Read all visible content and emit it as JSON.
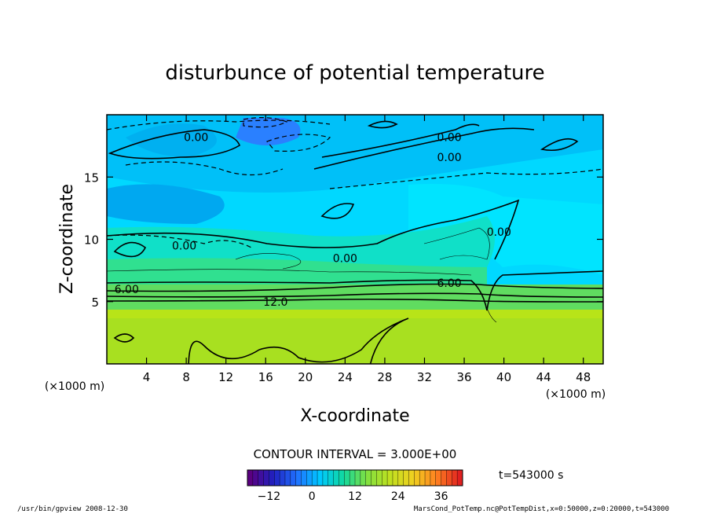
{
  "chart_data": {
    "type": "heatmap",
    "title": "disturbunce of potential temperature",
    "xlabel": "X-coordinate",
    "ylabel": "Z-coordinate",
    "x_unit": "(×1000 m)",
    "y_unit": "(×1000 m)",
    "xlim": [
      0,
      50
    ],
    "ylim": [
      0,
      20
    ],
    "x_ticks": [
      4,
      8,
      12,
      16,
      20,
      24,
      28,
      32,
      36,
      40,
      44,
      48
    ],
    "y_ticks": [
      5,
      10,
      15
    ],
    "contour_interval_text": "CONTOUR INTERVAL = 3.000E+00",
    "contour_labels": [
      {
        "text": "0.00",
        "x": 9,
        "z": 18.2
      },
      {
        "text": "0.00",
        "x": 34.5,
        "z": 18.2
      },
      {
        "text": "0.00",
        "x": 34.5,
        "z": 16.6
      },
      {
        "text": "0.00",
        "x": 7.8,
        "z": 9.5
      },
      {
        "text": "0.00",
        "x": 24,
        "z": 8.5
      },
      {
        "text": "0.00",
        "x": 39.5,
        "z": 10.6
      },
      {
        "text": "6.00",
        "x": 2,
        "z": 6.0
      },
      {
        "text": "6.00",
        "x": 34.5,
        "z": 6.5
      },
      {
        "text": "12.0",
        "x": 17,
        "z": 5.0
      }
    ],
    "colorbar": {
      "range": [
        -18,
        42
      ],
      "ticks": [
        -12,
        0,
        12,
        24,
        36
      ],
      "colors": [
        "#5a0080",
        "#2020c0",
        "#2070ff",
        "#00c8ff",
        "#10d8a0",
        "#80e040",
        "#c0e020",
        "#f0d020",
        "#ff8020",
        "#e02020"
      ]
    },
    "time_label": "t=543000 s",
    "grid": false,
    "legend": "bottom"
  },
  "footer": {
    "left": "/usr/bin/gpview   2008-12-30",
    "right": "MarsCond_PotTemp.nc@PotTempDist,x=0:50000,z=0:20000,t=543000"
  }
}
